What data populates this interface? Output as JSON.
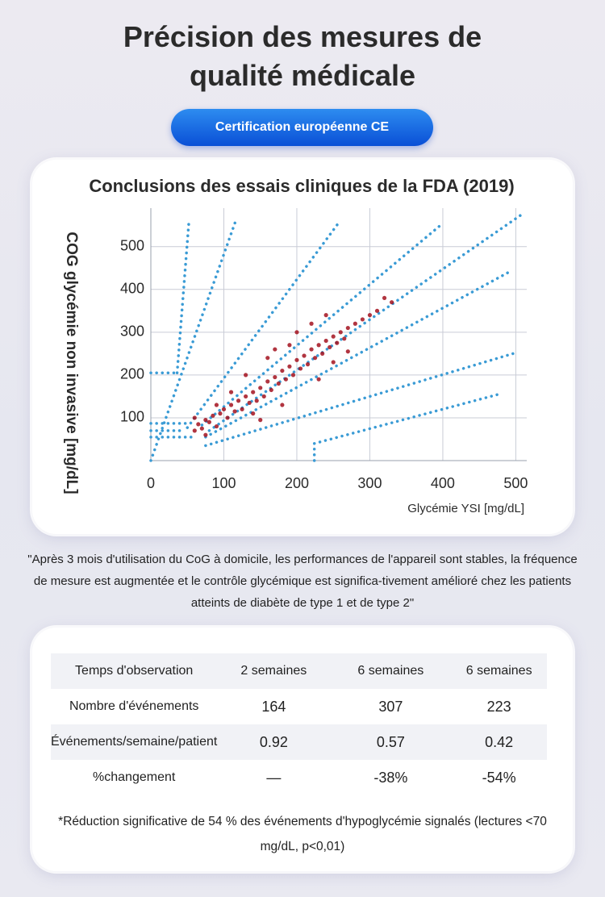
{
  "header": {
    "title": "Précision des mesures de qualité médicale",
    "badge": "Certification européenne CE"
  },
  "chart_data": {
    "type": "scatter",
    "title": "Conclusions des essais cliniques de la FDA (2019)",
    "xlabel": "Glycémie YSI [mg/dL]",
    "ylabel": "COG glycémie non invasive [mg/dL]",
    "color": "#a3121f",
    "x": [
      60,
      65,
      70,
      75,
      80,
      85,
      90,
      95,
      100,
      105,
      110,
      115,
      120,
      125,
      130,
      135,
      140,
      145,
      150,
      155,
      160,
      165,
      170,
      175,
      180,
      185,
      190,
      195,
      200,
      205,
      210,
      215,
      220,
      225,
      230,
      235,
      240,
      245,
      250,
      255,
      260,
      265,
      270,
      280,
      290,
      300,
      310,
      320,
      330,
      130,
      160,
      200,
      110,
      180,
      230,
      250,
      90,
      140,
      170,
      220,
      270,
      60,
      75,
      240,
      190,
      150
    ],
    "y": [
      70,
      85,
      75,
      95,
      90,
      105,
      80,
      110,
      120,
      100,
      130,
      115,
      140,
      120,
      150,
      135,
      160,
      140,
      170,
      150,
      185,
      165,
      195,
      180,
      210,
      190,
      220,
      200,
      235,
      215,
      245,
      225,
      260,
      240,
      270,
      250,
      280,
      265,
      290,
      275,
      300,
      285,
      310,
      320,
      330,
      340,
      350,
      380,
      370,
      200,
      240,
      300,
      160,
      130,
      190,
      230,
      130,
      110,
      260,
      320,
      255,
      100,
      60,
      340,
      270,
      95
    ],
    "reference_lines": {
      "color": "#3a9bd5",
      "segments": [
        [
          0,
          205,
          36,
          205
        ],
        [
          36,
          205,
          52,
          555
        ],
        [
          0,
          87,
          50,
          87
        ],
        [
          0,
          70,
          40,
          70
        ],
        [
          0,
          55,
          60,
          55
        ],
        [
          0,
          0,
          117,
          564
        ],
        [
          50,
          77,
          257,
          555
        ],
        [
          70,
          83,
          399,
          553
        ],
        [
          80,
          70,
          508,
          575
        ],
        [
          75,
          55,
          490,
          440
        ],
        [
          75,
          35,
          502,
          253
        ],
        [
          224,
          40,
          481,
          157
        ],
        [
          224,
          0,
          224,
          40
        ]
      ]
    },
    "xlim": [
      0,
      515
    ],
    "ylim": [
      0,
      590
    ],
    "xticks": [
      0,
      100,
      200,
      300,
      400,
      500
    ],
    "yticks": [
      100,
      200,
      300,
      400,
      500
    ],
    "grid": true
  },
  "quote": "\"Après 3 mois d'utilisation du CoG à domicile, les performances de l'appareil sont stables, la fréquence de mesure est augmentée et le contrôle glycémique est significa-tivement amélioré chez les patients atteints de diabète de type 1 et de type 2\"",
  "table": {
    "rows": [
      [
        "Temps d'observation",
        "2 semaines",
        "6 semaines",
        "6 semaines"
      ],
      [
        "Nombre d'événements",
        164,
        307,
        223
      ],
      [
        "Événements/semaine/patient",
        0.92,
        0.57,
        0.42
      ],
      [
        "%changement",
        "—",
        "-38%",
        "-54%"
      ]
    ]
  },
  "footnote": "*Réduction significative de 54 % des événements d'hypoglycémie signalés (lectures <70 mg/dL, p<0,01)"
}
